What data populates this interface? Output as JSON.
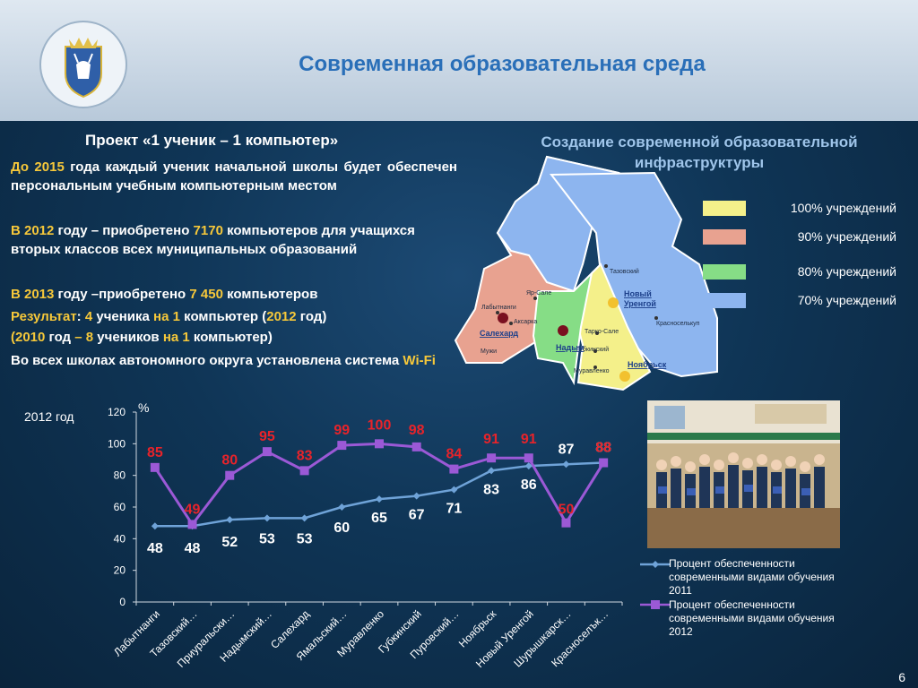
{
  "title": "Современная образовательная среда",
  "project": {
    "heading_prefix": "Проект ",
    "heading_name": "«1 ученик – 1 компьютер»",
    "p1_a": "До 2015",
    "p1_b": " года каждый ученик начальной школы будет обеспечен персональным учебным компьютерным местом",
    "p2_a": "В 2012",
    "p2_b": " году – приобретено ",
    "p2_c": "7170",
    "p2_d": " компьютеров для учащихся вторых классов всех муниципальных образований",
    "p3_a": "В 2013",
    "p3_b": " году –приобретено ",
    "p3_c": "7 450",
    "p3_d": " компьютеров",
    "p4_a": "Результат",
    "p4_b": ":  ",
    "p4_c": "4",
    "p4_d": " ученика ",
    "p4_e": "на 1",
    "p4_f": " компьютер (",
    "p4_g": "2012",
    "p4_h": " год)",
    "p5_a": "(2010",
    "p5_b": " год ",
    "p5_c": "– 8",
    "p5_d": " учеников ",
    "p5_e": "на 1",
    "p5_f": " компьютер)",
    "p6_a": "Во всех школах автономного округа установлена система ",
    "p6_b": "Wi-Fi"
  },
  "infra": {
    "heading_line1": "Создание современной образовательной",
    "heading_line2": "инфраструктуры",
    "legend": [
      {
        "label": "100% учреждений",
        "color": "#f4f08a"
      },
      {
        "label": "90% учреждений",
        "color": "#e8a290"
      },
      {
        "label": "80% учреждений",
        "color": "#86dd86"
      },
      {
        "label": "70% учреждений",
        "color": "#8db5ef"
      }
    ],
    "map_labels": {
      "labytnangi": "Лабытнанги",
      "yarsale": "Яр-Сале",
      "aksarka": "Аксарка",
      "salekhard": "Салехард",
      "muzhi": "Мужи",
      "nadym": "Надым",
      "tazovsky": "Тазовский",
      "novy_urengoy_1": "Новый",
      "novy_urengoy_2": "Уренгой",
      "tarko_sale": "Тарко-Сале",
      "gubkinsky": "Губкинский",
      "muravlenko": "Муравленко",
      "noyabrsk": "Ноябрьск",
      "krasnoselkup": "Красноселькуп"
    }
  },
  "colors": {
    "series_2011": "#6fa3d8",
    "series_2012": "#9b59d6",
    "value_2011": "#ffffff",
    "value_2012": "#e8232a",
    "accent_yellow": "#f6c83a"
  },
  "page_number": "6",
  "chart_data": {
    "type": "line",
    "year_label": "2012 год",
    "unit_label": "%",
    "ylim": [
      0,
      120
    ],
    "yticks": [
      "0",
      "20",
      "40",
      "60",
      "80",
      "100",
      "120"
    ],
    "categories": [
      "Лабытнанги",
      "Тазовский…",
      "Приуральски…",
      "Надымский…",
      "Салехард",
      "Ямальский…",
      "Муравленко",
      "Губкинский",
      "Пуровский…",
      "Ноябрьск",
      "Новый Уренгой",
      "Шурышкарск…",
      "Красноселък…"
    ],
    "series": [
      {
        "name": "Процент обеспеченности современными видами обучения 2011",
        "values": [
          48,
          48,
          52,
          53,
          53,
          60,
          65,
          67,
          71,
          83,
          86,
          87,
          88
        ]
      },
      {
        "name": "Процент обеспеченности современными видами обучения 2012",
        "values": [
          85,
          49,
          80,
          95,
          83,
          99,
          100,
          98,
          84,
          91,
          91,
          50,
          88
        ]
      }
    ],
    "data_labels_2011": [
      "48",
      "48",
      "52",
      "53",
      "53",
      "60",
      "65",
      "67",
      "71",
      "83",
      "86",
      "87",
      "88"
    ],
    "data_labels_2012": [
      "85",
      "49",
      "80",
      "95",
      "83",
      "99",
      "100",
      "98",
      "84",
      "91",
      "91",
      "50",
      "88"
    ]
  }
}
